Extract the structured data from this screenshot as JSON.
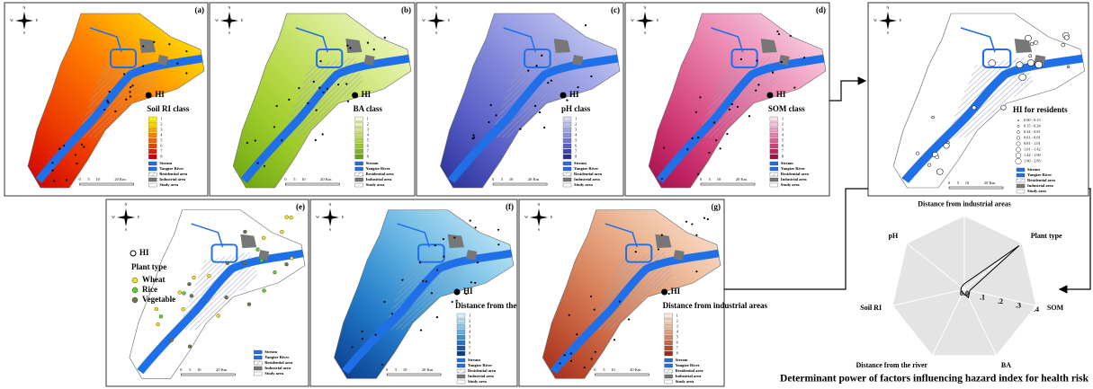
{
  "compass": [
    "N",
    "E",
    "S",
    "W"
  ],
  "scale_bar": [
    "0",
    "5",
    "10",
    "20 Km"
  ],
  "common_legend": [
    "Stream",
    "Yangtze River",
    "Residential area",
    "Industrial area",
    "Study area"
  ],
  "panels": [
    {
      "label": "(a)",
      "marker": "HI",
      "legend_title": "Soil RI class",
      "classes": [
        "1",
        "2",
        "3",
        "4",
        "5",
        "6",
        "7",
        "8"
      ],
      "colors": [
        "#fff200",
        "#ffd000",
        "#ffa800",
        "#ff8000",
        "#f86000",
        "#ee4000",
        "#e02000",
        "#c80000"
      ]
    },
    {
      "label": "(b)",
      "marker": "HI",
      "legend_title": "BA class",
      "classes": [
        "1",
        "2",
        "3",
        "4",
        "5",
        "6",
        "7",
        "8"
      ],
      "colors": [
        "#f4f9d8",
        "#e6f2b0",
        "#d6ea8a",
        "#c4e064",
        "#b2d640",
        "#9ccb2a",
        "#84b81c",
        "#6aa012"
      ]
    },
    {
      "label": "(c)",
      "marker": "HI",
      "legend_title": "pH class",
      "classes": [
        "1",
        "2",
        "3",
        "4",
        "5",
        "6",
        "7",
        "8"
      ],
      "colors": [
        "#d8daf6",
        "#bcc0ee",
        "#a0a6e6",
        "#8a90de",
        "#7078d2",
        "#5860c6",
        "#4048b0",
        "#283090"
      ]
    },
    {
      "label": "(d)",
      "marker": "HI",
      "legend_title": "SOM class",
      "classes": [
        "1",
        "2",
        "3",
        "4",
        "5",
        "6",
        "7",
        "8"
      ],
      "colors": [
        "#fbe0ec",
        "#f6c2d8",
        "#f0a0c2",
        "#e880aa",
        "#de6092",
        "#d2407a",
        "#c02462",
        "#a01048"
      ]
    },
    {
      "label": "(e)",
      "marker": "HI",
      "legend_title": "Plant type",
      "items": [
        {
          "name": "Wheat",
          "color": "#f2e21c"
        },
        {
          "name": "Rice",
          "color": "#5ed12a"
        },
        {
          "name": "Vegetable",
          "color": "#6a7a50"
        }
      ]
    },
    {
      "label": "(f)",
      "marker": "HI",
      "legend_title": "Distance from the river",
      "classes": [
        "1",
        "2",
        "3",
        "4",
        "5",
        "6",
        "7",
        "8"
      ],
      "colors": [
        "#d8f0fa",
        "#b0ddf2",
        "#88c8ea",
        "#60b0e0",
        "#3c94d4",
        "#2076c4",
        "#1458a8",
        "#0c3c88"
      ]
    },
    {
      "label": "(g)",
      "marker": "HI",
      "legend_title": "Distance from industrial areas",
      "classes": [
        "1",
        "2",
        "3",
        "4",
        "5",
        "6",
        "7",
        "8"
      ],
      "colors": [
        "#fbe8dc",
        "#f6d2bc",
        "#eebc9c",
        "#e4a07c",
        "#d8845e",
        "#ca6644",
        "#b8482c",
        "#a02a18"
      ]
    }
  ],
  "residents_panel": {
    "legend_title": "HI for residents",
    "ranges": [
      "0.00 - 0.15",
      "0.15 - 0.24",
      "0.24 - 0.61",
      "0.61 - 0.81",
      "0.81 - 1.01",
      "1.01 - 1.42",
      "1.42 - 1.90",
      "1.90 - 2.85"
    ]
  },
  "chart_data": {
    "type": "radar",
    "title": "Determinant power of factors influencing hazard index for health risk",
    "categories": [
      "Distance from industrial areas",
      "Plant type",
      "SOM",
      "BA",
      "Distance from the river",
      "Soil RI",
      "pH"
    ],
    "values": [
      0.03,
      0.38,
      0.03,
      0.05,
      0.02,
      0.02,
      0.02
    ],
    "rlim": [
      0,
      0.4
    ],
    "rticks": [
      {
        "value": 0,
        "label": "0.0"
      },
      {
        "value": 0.1,
        "label": ".1"
      },
      {
        "value": 0.2,
        "label": ".2"
      },
      {
        "value": 0.3,
        "label": ".3"
      },
      {
        "value": 0.4,
        "label": ".4"
      }
    ],
    "grid": true,
    "color": "#000000"
  }
}
